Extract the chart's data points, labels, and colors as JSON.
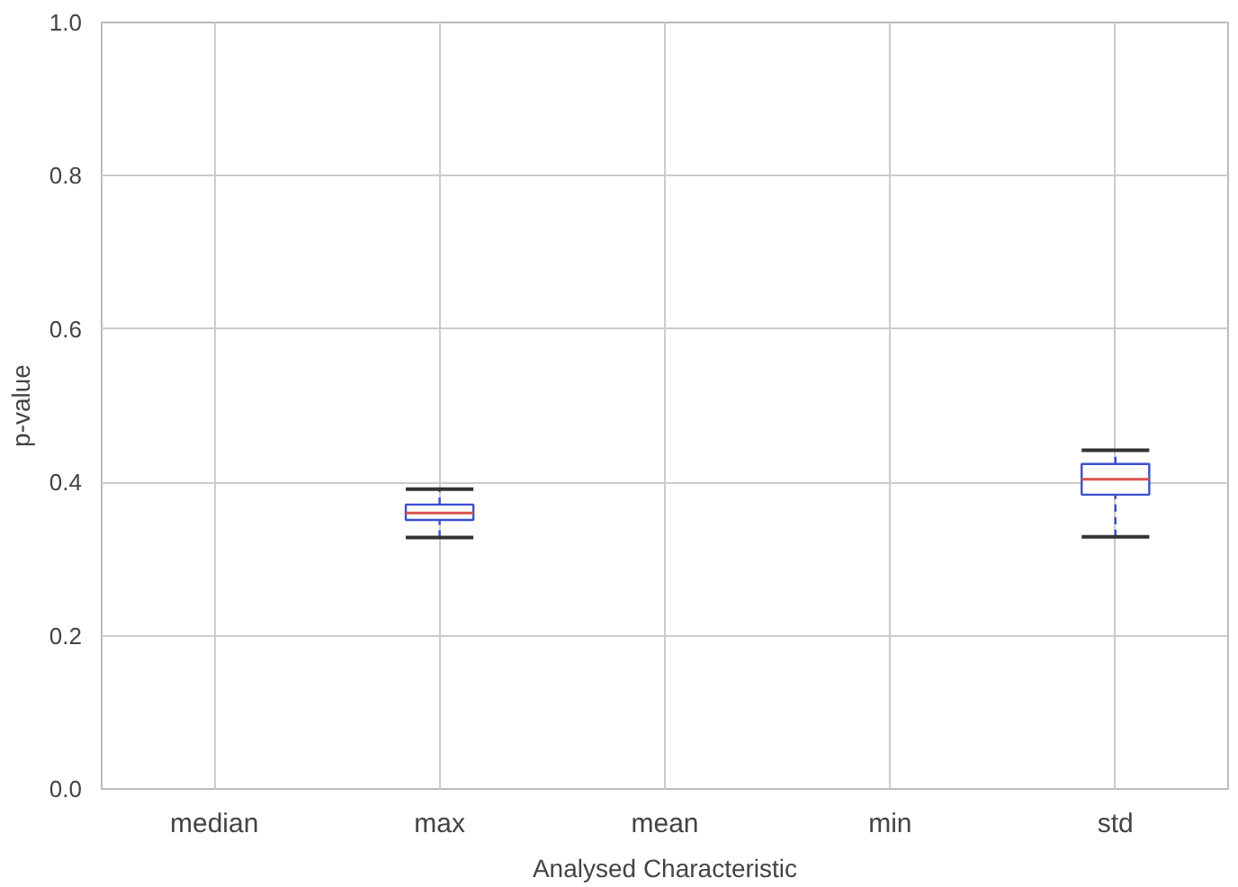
{
  "chart_data": {
    "type": "box",
    "xlabel": "Analysed Characteristic",
    "ylabel": "p-value",
    "categories": [
      "median",
      "max",
      "mean",
      "min",
      "std"
    ],
    "boxes": [
      null,
      {
        "low": 0.328,
        "q1": 0.351,
        "median": 0.36,
        "q3": 0.371,
        "high": 0.391
      },
      null,
      null,
      {
        "low": 0.329,
        "q1": 0.384,
        "median": 0.404,
        "q3": 0.424,
        "high": 0.442
      }
    ],
    "color": "#3a4fcf",
    "ylim": [
      0,
      1
    ],
    "yticks": [
      {
        "value": 0,
        "label": "0.0"
      },
      {
        "value": 0.2,
        "label": "0.2"
      },
      {
        "value": 0.4,
        "label": "0.4"
      },
      {
        "value": 0.6,
        "label": "0.6"
      },
      {
        "value": 0.8,
        "label": "0.8"
      },
      {
        "value": 1,
        "label": "1.0"
      }
    ],
    "grid": true
  }
}
